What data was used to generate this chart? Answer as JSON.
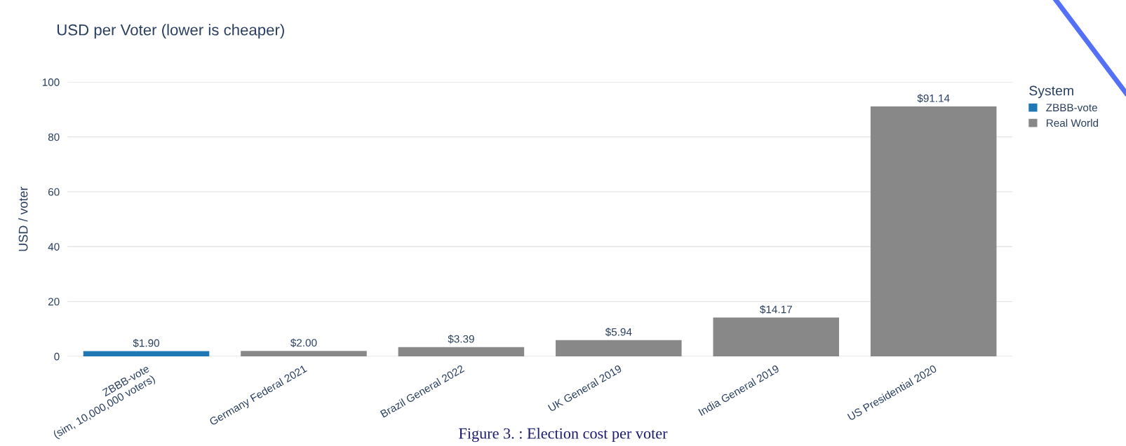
{
  "chart_data": {
    "type": "bar",
    "title": "USD per Voter (lower is cheaper)",
    "ylabel": "USD / voter",
    "legend_title": "System",
    "categories": [
      "ZBBB-vote\n(sim, 10,000,000 voters)",
      "Germany Federal 2021",
      "Brazil General 2022",
      "UK General 2019",
      "India General 2019",
      "US Presidential 2020"
    ],
    "series": [
      {
        "name": "ZBBB-vote",
        "color": "#1f77b4",
        "values": [
          1.9,
          null,
          null,
          null,
          null,
          null
        ],
        "value_labels": [
          "$1.90",
          null,
          null,
          null,
          null,
          null
        ]
      },
      {
        "name": "Real World",
        "color": "#888888",
        "values": [
          null,
          2.0,
          3.39,
          5.94,
          14.17,
          91.14
        ],
        "value_labels": [
          null,
          "$2.00",
          "$3.39",
          "$5.94",
          "$14.17",
          "$91.14"
        ]
      }
    ],
    "stacked": true,
    "ylim": [
      0,
      100
    ],
    "yticks": [
      0,
      20,
      40,
      60,
      80,
      100
    ],
    "grid": "y",
    "legend": "top right",
    "annotations": [
      "Figure 3. : Election cost per voter"
    ]
  }
}
